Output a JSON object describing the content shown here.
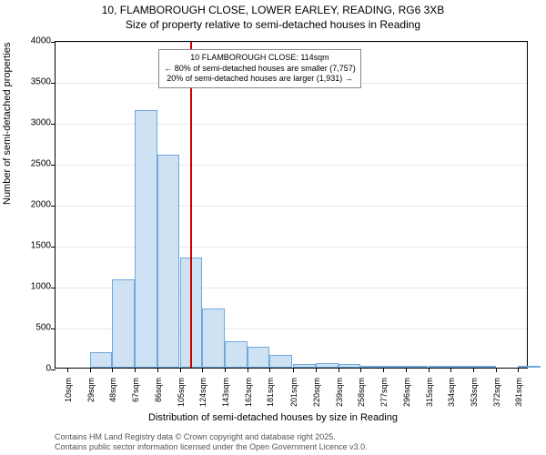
{
  "title_line1": "10, FLAMBOROUGH CLOSE, LOWER EARLEY, READING, RG6 3XB",
  "title_line2": "Size of property relative to semi-detached houses in Reading",
  "y_axis_label": "Number of semi-detached properties",
  "x_axis_label": "Distribution of semi-detached houses by size in Reading",
  "attribution_line1": "Contains HM Land Registry data © Crown copyright and database right 2025.",
  "attribution_line2": "Contains public sector information licensed under the Open Government Licence v3.0.",
  "chart": {
    "type": "histogram",
    "background_color": "#ffffff",
    "grid_color": "#e8e8e8",
    "border_color": "#000000",
    "bar_fill": "#cfe2f3",
    "bar_stroke": "#6fa8dc",
    "bar_stroke_width": 1,
    "marker_color": "#cc0000",
    "marker_x": 114,
    "ylim": [
      0,
      4000
    ],
    "y_ticks": [
      0,
      500,
      1000,
      1500,
      2000,
      2500,
      3000,
      3500,
      4000
    ],
    "xlim": [
      0,
      400
    ],
    "x_ticks": [
      10,
      29,
      48,
      67,
      86,
      105,
      124,
      143,
      162,
      181,
      201,
      220,
      239,
      258,
      277,
      296,
      315,
      334,
      353,
      372,
      391
    ],
    "x_tick_suffix": "sqm",
    "bin_width": 19,
    "bins": [
      {
        "x": 10,
        "count": 0
      },
      {
        "x": 29,
        "count": 190
      },
      {
        "x": 48,
        "count": 1080
      },
      {
        "x": 67,
        "count": 3150
      },
      {
        "x": 86,
        "count": 2600
      },
      {
        "x": 105,
        "count": 1350
      },
      {
        "x": 124,
        "count": 720
      },
      {
        "x": 143,
        "count": 320
      },
      {
        "x": 162,
        "count": 260
      },
      {
        "x": 181,
        "count": 160
      },
      {
        "x": 201,
        "count": 50
      },
      {
        "x": 220,
        "count": 60
      },
      {
        "x": 239,
        "count": 40
      },
      {
        "x": 258,
        "count": 20
      },
      {
        "x": 277,
        "count": 10
      },
      {
        "x": 296,
        "count": 10
      },
      {
        "x": 315,
        "count": 5
      },
      {
        "x": 334,
        "count": 5
      },
      {
        "x": 353,
        "count": 5
      },
      {
        "x": 372,
        "count": 0
      },
      {
        "x": 391,
        "count": 5
      }
    ],
    "annotation": {
      "line1": "10 FLAMBOROUGH CLOSE: 114sqm",
      "line2": "← 80% of semi-detached houses are smaller (7,757)",
      "line3": "20% of semi-detached houses are larger (1,931) →",
      "box_bg": "#ffffff",
      "box_border": "#888888"
    },
    "tick_fontsize": 10,
    "label_fontsize": 11,
    "title_fontsize": 12
  }
}
